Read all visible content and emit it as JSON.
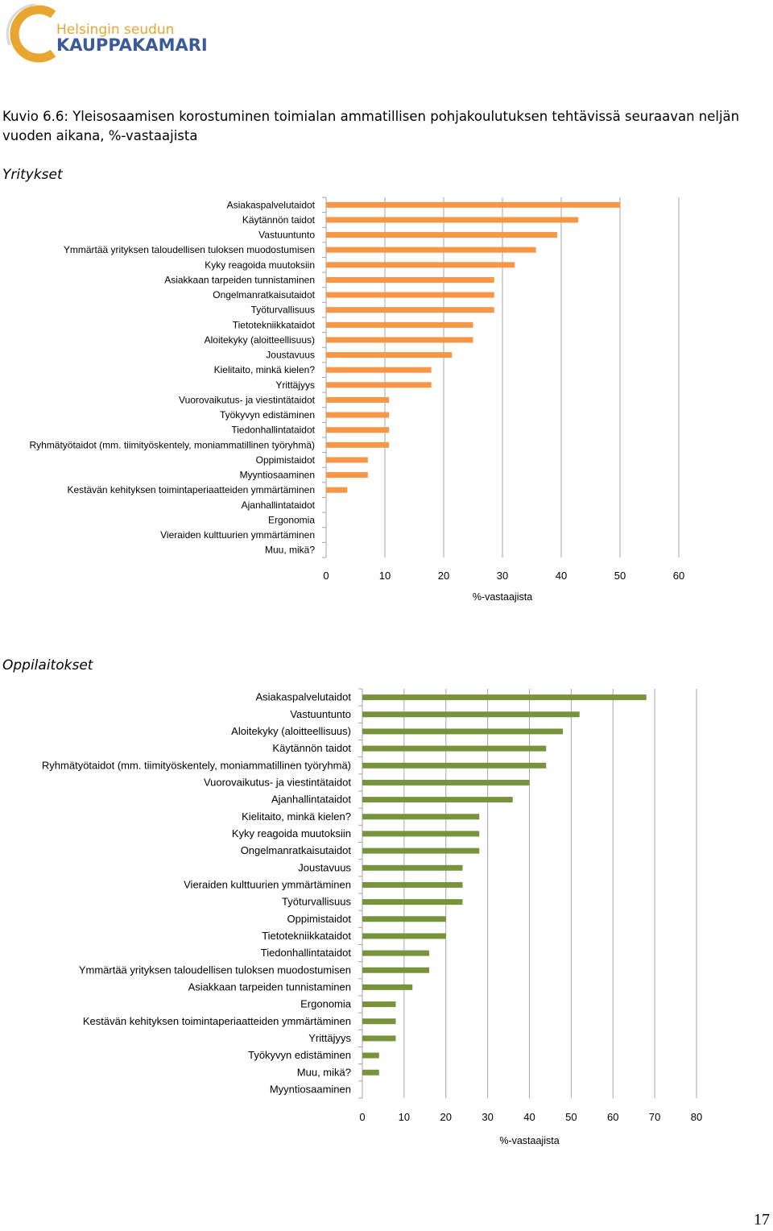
{
  "header": {
    "logo_line1": "Helsingin seudun",
    "logo_line2": "KAUPPAKAMARI"
  },
  "caption": "Kuvio 6.6: Yleisosaamisen korostuminen toimialan ammatillisen pohjakoulutuksen tehtävissä seuraavan neljän vuoden aikana, %-vastaajista",
  "page_number": "17",
  "colors": {
    "companies": "#F79646",
    "schools": "#77933C",
    "axis": "#A6A6A6",
    "logo_c": "#E8A631",
    "logo_text": "#3A5A9B"
  },
  "sections": {
    "companies_title": "Yritykset",
    "schools_title": "Oppilaitokset"
  },
  "chart_data": [
    {
      "type": "bar",
      "orientation": "horizontal",
      "title": "Yritykset",
      "xlabel": "%-vastaajista",
      "xlim": [
        0,
        60
      ],
      "xticks": [
        0,
        10,
        20,
        30,
        40,
        50,
        60
      ],
      "grid": "vertical",
      "color": "#F79646",
      "categories": [
        "Asiakaspalvelutaidot",
        "Käytännön taidot",
        "Vastuuntunto",
        "Ymmärtää yrityksen taloudellisen tuloksen muodostumisen",
        "Kyky reagoida muutoksiin",
        "Asiakkaan tarpeiden tunnistaminen",
        "Ongelmanratkaisutaidot",
        "Työturvallisuus",
        "Tietotekniikkataidot",
        "Aloitekyky (aloitteellisuus)",
        "Joustavuus",
        "Kielitaito, minkä kielen?",
        "Yrittäjyys",
        "Vuorovaikutus- ja viestintätaidot",
        "Työkyvyn edistäminen",
        "Tiedonhallintataidot",
        "Ryhmätyötaidot (mm. tiimityöskentely, moniammatillinen työryhmä)",
        "Oppimistaidot",
        "Myyntiosaaminen",
        "Kestävän kehityksen toimintaperiaatteiden ymmärtäminen",
        "Ajanhallintataidot",
        "Ergonomia",
        "Vieraiden kulttuurien ymmärtäminen",
        "Muu, mikä?"
      ],
      "values": [
        50,
        42.9,
        39.3,
        35.7,
        32.1,
        28.6,
        28.6,
        28.6,
        25,
        25,
        21.4,
        17.9,
        17.9,
        10.7,
        10.7,
        10.7,
        10.7,
        7.1,
        7.1,
        3.6,
        0,
        0,
        0,
        0
      ]
    },
    {
      "type": "bar",
      "orientation": "horizontal",
      "title": "Oppilaitokset",
      "xlabel": "%-vastaajista",
      "xlim": [
        0,
        80
      ],
      "xticks": [
        0,
        10,
        20,
        30,
        40,
        50,
        60,
        70,
        80
      ],
      "grid": "vertical",
      "color": "#77933C",
      "categories": [
        "Asiakaspalvelutaidot",
        "Vastuuntunto",
        "Aloitekyky (aloitteellisuus)",
        "Käytännön taidot",
        "Ryhmätyötaidot (mm. tiimityöskentely, moniammatillinen työryhmä)",
        "Vuorovaikutus- ja viestintätaidot",
        "Ajanhallintataidot",
        "Kielitaito, minkä kielen?",
        "Kyky reagoida muutoksiin",
        "Ongelmanratkaisutaidot",
        "Joustavuus",
        "Vieraiden kulttuurien ymmärtäminen",
        "Työturvallisuus",
        "Oppimistaidot",
        "Tietotekniikkataidot",
        "Tiedonhallintataidot",
        "Ymmärtää yrityksen taloudellisen tuloksen muodostumisen",
        "Asiakkaan tarpeiden tunnistaminen",
        "Ergonomia",
        "Kestävän kehityksen toimintaperiaatteiden ymmärtäminen",
        "Yrittäjyys",
        "Työkyvyn edistäminen",
        "Muu, mikä?",
        "Myyntiosaaminen"
      ],
      "values": [
        68,
        52,
        48,
        44,
        44,
        40,
        36,
        28,
        28,
        28,
        24,
        24,
        24,
        20,
        20,
        16,
        16,
        12,
        8,
        8,
        8,
        4,
        4,
        0
      ]
    }
  ]
}
